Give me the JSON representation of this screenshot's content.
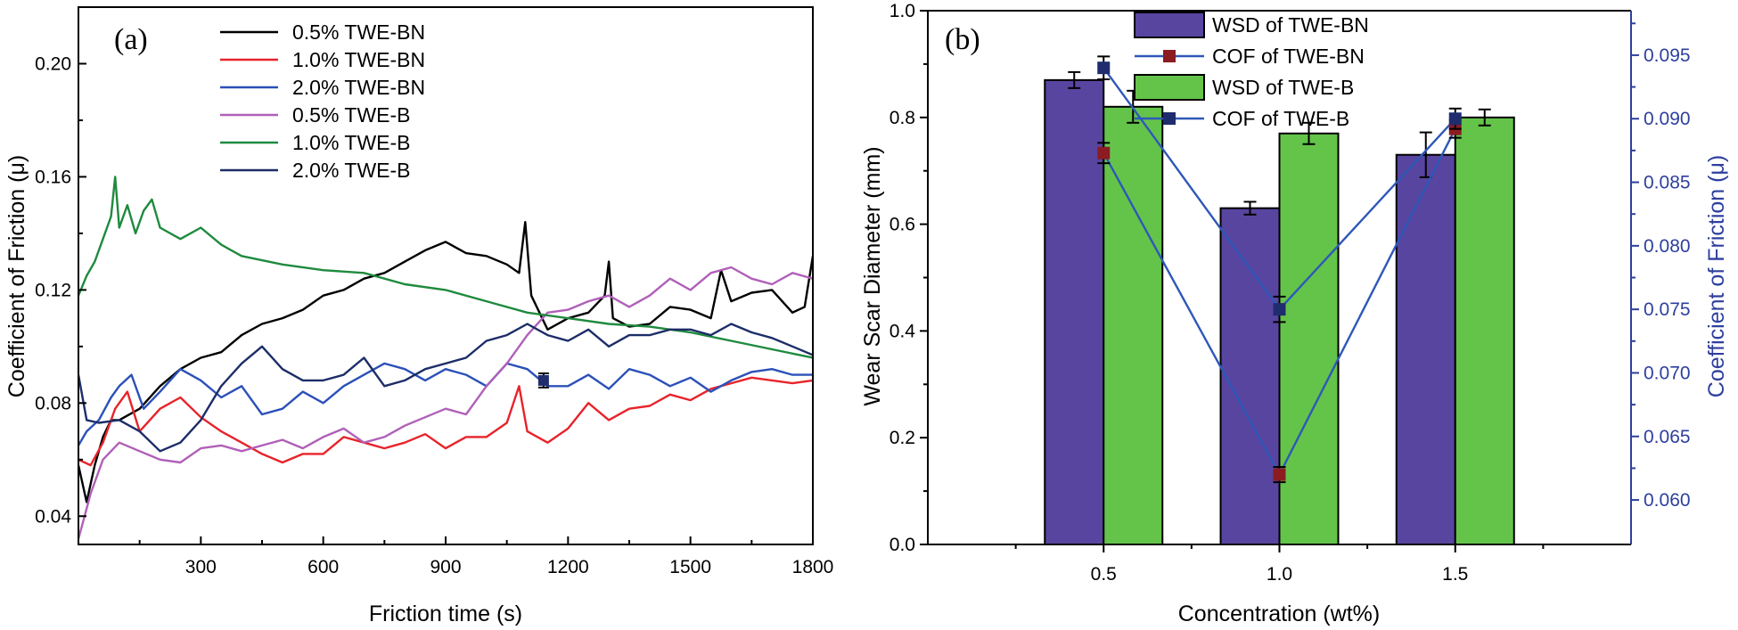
{
  "colors": {
    "axis": "#000000",
    "right_axis": "#2e3f9e",
    "bar_bn": "#5845a0",
    "bar_b": "#64c44a",
    "cof_line": "#2e58b8",
    "cof_bn_marker": "#8a1c22",
    "cof_b_marker": "#1f2d6e"
  },
  "chart_data": [
    {
      "type": "line",
      "panel_label": "(a)",
      "xlabel": "Friction time (s)",
      "ylabel": "Coefficient of Friction (μ)",
      "xlim": [
        0,
        1800
      ],
      "ylim": [
        0.03,
        0.22
      ],
      "xticks": [
        300,
        600,
        900,
        1200,
        1500,
        1800
      ],
      "xtick_labels": [
        "300",
        "600",
        "900",
        "1200",
        "1500",
        "1800"
      ],
      "yticks": [
        0.04,
        0.08,
        0.12,
        0.16,
        0.2
      ],
      "ytick_labels": [
        "0.04",
        "0.08",
        "0.12",
        "0.16",
        "0.20"
      ],
      "legend_position": "top-center",
      "series": [
        {
          "name": "0.5% TWE-BN",
          "color": "#000000",
          "x": [
            0,
            20,
            40,
            60,
            80,
            100,
            150,
            200,
            250,
            300,
            350,
            400,
            450,
            500,
            550,
            600,
            650,
            700,
            750,
            800,
            850,
            900,
            950,
            1000,
            1050,
            1080,
            1095,
            1110,
            1150,
            1200,
            1250,
            1290,
            1300,
            1310,
            1350,
            1400,
            1450,
            1500,
            1550,
            1575,
            1600,
            1650,
            1700,
            1750,
            1780,
            1800
          ],
          "y": [
            0.058,
            0.045,
            0.058,
            0.068,
            0.074,
            0.074,
            0.078,
            0.086,
            0.092,
            0.096,
            0.098,
            0.104,
            0.108,
            0.11,
            0.113,
            0.118,
            0.12,
            0.124,
            0.126,
            0.13,
            0.134,
            0.137,
            0.133,
            0.132,
            0.129,
            0.126,
            0.144,
            0.118,
            0.106,
            0.11,
            0.112,
            0.118,
            0.13,
            0.11,
            0.107,
            0.108,
            0.114,
            0.113,
            0.11,
            0.127,
            0.116,
            0.119,
            0.12,
            0.112,
            0.114,
            0.132
          ]
        },
        {
          "name": "1.0% TWE-BN",
          "color": "#e8232a",
          "x": [
            0,
            30,
            60,
            90,
            120,
            150,
            200,
            250,
            300,
            350,
            400,
            450,
            500,
            550,
            600,
            650,
            700,
            750,
            800,
            850,
            900,
            950,
            1000,
            1050,
            1080,
            1100,
            1150,
            1200,
            1250,
            1300,
            1350,
            1400,
            1450,
            1500,
            1550,
            1600,
            1650,
            1700,
            1750,
            1800
          ],
          "y": [
            0.06,
            0.058,
            0.066,
            0.078,
            0.084,
            0.07,
            0.078,
            0.082,
            0.075,
            0.07,
            0.066,
            0.062,
            0.059,
            0.062,
            0.062,
            0.068,
            0.066,
            0.064,
            0.066,
            0.069,
            0.064,
            0.068,
            0.068,
            0.073,
            0.086,
            0.07,
            0.066,
            0.071,
            0.08,
            0.074,
            0.078,
            0.079,
            0.083,
            0.081,
            0.085,
            0.087,
            0.089,
            0.088,
            0.087,
            0.088
          ]
        },
        {
          "name": "2.0% TWE-BN",
          "color": "#2b50b8",
          "x": [
            0,
            20,
            50,
            80,
            100,
            130,
            160,
            200,
            250,
            300,
            350,
            400,
            450,
            500,
            550,
            600,
            650,
            700,
            750,
            800,
            850,
            900,
            950,
            1000,
            1050,
            1100,
            1150,
            1200,
            1250,
            1300,
            1350,
            1400,
            1450,
            1500,
            1550,
            1600,
            1650,
            1700,
            1750,
            1800
          ],
          "y": [
            0.065,
            0.07,
            0.074,
            0.082,
            0.086,
            0.09,
            0.078,
            0.084,
            0.092,
            0.088,
            0.082,
            0.086,
            0.076,
            0.078,
            0.084,
            0.08,
            0.086,
            0.09,
            0.094,
            0.092,
            0.088,
            0.092,
            0.09,
            0.086,
            0.094,
            0.092,
            0.086,
            0.086,
            0.09,
            0.085,
            0.092,
            0.09,
            0.086,
            0.089,
            0.084,
            0.088,
            0.091,
            0.092,
            0.09,
            0.09
          ]
        },
        {
          "name": "0.5% TWE-B",
          "color": "#b060b8",
          "x": [
            0,
            15,
            30,
            60,
            100,
            150,
            200,
            250,
            300,
            350,
            400,
            450,
            500,
            550,
            600,
            650,
            700,
            750,
            800,
            850,
            900,
            950,
            1000,
            1050,
            1100,
            1150,
            1200,
            1250,
            1300,
            1350,
            1400,
            1450,
            1500,
            1550,
            1600,
            1650,
            1700,
            1750,
            1800
          ],
          "y": [
            0.032,
            0.04,
            0.048,
            0.06,
            0.066,
            0.063,
            0.06,
            0.059,
            0.064,
            0.065,
            0.063,
            0.065,
            0.067,
            0.064,
            0.068,
            0.071,
            0.066,
            0.068,
            0.072,
            0.075,
            0.078,
            0.076,
            0.086,
            0.094,
            0.104,
            0.112,
            0.113,
            0.116,
            0.118,
            0.114,
            0.118,
            0.124,
            0.12,
            0.126,
            0.128,
            0.124,
            0.122,
            0.126,
            0.124
          ]
        },
        {
          "name": "1.0% TWE-B",
          "color": "#1f8a3e",
          "x": [
            0,
            20,
            40,
            60,
            80,
            90,
            100,
            120,
            140,
            160,
            180,
            200,
            250,
            300,
            350,
            400,
            500,
            600,
            700,
            800,
            900,
            1000,
            1100,
            1200,
            1300,
            1400,
            1500,
            1600,
            1700,
            1800
          ],
          "y": [
            0.118,
            0.125,
            0.13,
            0.138,
            0.146,
            0.16,
            0.142,
            0.15,
            0.14,
            0.148,
            0.152,
            0.142,
            0.138,
            0.142,
            0.136,
            0.132,
            0.129,
            0.127,
            0.126,
            0.122,
            0.12,
            0.116,
            0.112,
            0.11,
            0.108,
            0.107,
            0.105,
            0.102,
            0.099,
            0.096
          ]
        },
        {
          "name": "2.0% TWE-B",
          "color": "#1c2d68",
          "x": [
            0,
            20,
            50,
            100,
            150,
            200,
            250,
            300,
            350,
            400,
            450,
            500,
            550,
            600,
            650,
            700,
            750,
            800,
            850,
            900,
            950,
            1000,
            1050,
            1100,
            1150,
            1200,
            1250,
            1300,
            1350,
            1400,
            1450,
            1500,
            1550,
            1600,
            1650,
            1700,
            1750,
            1800
          ],
          "y": [
            0.09,
            0.074,
            0.073,
            0.074,
            0.07,
            0.063,
            0.066,
            0.074,
            0.086,
            0.094,
            0.1,
            0.092,
            0.088,
            0.088,
            0.09,
            0.096,
            0.086,
            0.088,
            0.092,
            0.094,
            0.096,
            0.102,
            0.104,
            0.108,
            0.104,
            0.102,
            0.106,
            0.1,
            0.104,
            0.104,
            0.106,
            0.106,
            0.104,
            0.108,
            0.105,
            0.103,
            0.1,
            0.097
          ]
        }
      ],
      "annotation_errorbar": {
        "x": 1140,
        "y": 0.088,
        "err": 0.0025,
        "color": "#1f2d6e"
      }
    },
    {
      "type": "bar",
      "panel_label": "(b)",
      "xlabel": "Concentration (wt%)",
      "ylabel": "Wear Scar Diameter (mm)",
      "y2label": "Coefficient of Friction (μ)",
      "categories": [
        "0.5",
        "1.0",
        "1.5"
      ],
      "category_values": [
        0.5,
        1.0,
        1.5
      ],
      "xlim": [
        0.0,
        2.0
      ],
      "ylim": [
        0.0,
        1.0
      ],
      "y2lim": [
        0.0565,
        0.0985
      ],
      "yticks": [
        0.0,
        0.2,
        0.4,
        0.6,
        0.8,
        1.0
      ],
      "ytick_labels": [
        "0.0",
        "0.2",
        "0.4",
        "0.6",
        "0.8",
        "1.0"
      ],
      "y2ticks": [
        0.06,
        0.065,
        0.07,
        0.075,
        0.08,
        0.085,
        0.09,
        0.095
      ],
      "y2tick_labels": [
        "0.060",
        "0.065",
        "0.070",
        "0.075",
        "0.080",
        "0.085",
        "0.090",
        "0.095"
      ],
      "legend_position": "top-center",
      "legend": [
        "WSD of TWE-BN",
        "COF of TWE-BN",
        "WSD of TWE-B",
        "COF of TWE-B"
      ],
      "bar_series": [
        {
          "name": "WSD of TWE-BN",
          "values": [
            0.87,
            0.63,
            0.73
          ],
          "errors": [
            0.015,
            0.012,
            0.042
          ]
        },
        {
          "name": "WSD of TWE-B",
          "values": [
            0.82,
            0.77,
            0.8
          ],
          "errors": [
            0.03,
            0.02,
            0.015
          ]
        }
      ],
      "line_series": [
        {
          "name": "COF of TWE-BN",
          "values": [
            0.0873,
            0.062,
            0.0892
          ],
          "errors": [
            0.0008,
            0.0006,
            0.0007
          ]
        },
        {
          "name": "COF of TWE-B",
          "values": [
            0.094,
            0.075,
            0.09
          ],
          "errors": [
            0.0009,
            0.001,
            0.0008
          ]
        }
      ]
    }
  ]
}
